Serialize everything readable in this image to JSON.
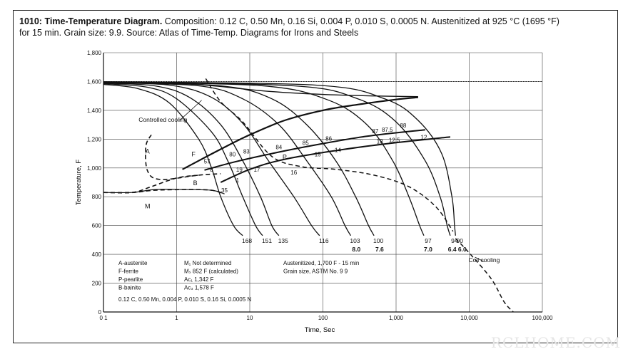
{
  "header": {
    "title": "1010: Time-Temperature Diagram.",
    "text_line1": " Composition: 0.12 C, 0.50 Mn, 0.16 Si, 0.004 P, 0.010 S, 0.0005 N. Austenitized at 925 °C (1695 °F)",
    "text_line2": "for 15 min. Grain size: 9.9. Source: Atlas of Time-Temp. Diagrams for Irons and Steels"
  },
  "watermark": "RCLHOME.COM",
  "chart_data": {
    "type": "line",
    "xscale": "log",
    "xlim": [
      0.1,
      100000
    ],
    "ylim": [
      0,
      1800
    ],
    "xlabel": "Time, Sec",
    "ylabel": "Temperature, F",
    "xticks": [
      0.1,
      1,
      10,
      100,
      1000,
      10000,
      100000
    ],
    "xtick_labels": [
      "0 1",
      "1",
      "10",
      "100",
      "1,000",
      "10,000",
      "100,000"
    ],
    "yticks": [
      0,
      200,
      400,
      600,
      800,
      1000,
      1200,
      1400,
      1600,
      1800
    ],
    "ytick_labels": [
      "0",
      "200",
      "400",
      "600",
      "800",
      "1,000",
      "1,200",
      "1,400",
      "1,600",
      "1,800"
    ],
    "grid": true,
    "cooling_curves": [
      {
        "end_label": "168",
        "points": [
          [
            0.1,
            1580
          ],
          [
            0.3,
            1550
          ],
          [
            0.8,
            1450
          ],
          [
            2,
            1200
          ],
          [
            3,
            1000
          ],
          [
            4,
            800
          ],
          [
            6,
            600
          ],
          [
            8,
            530
          ]
        ]
      },
      {
        "end_label": "151",
        "points": [
          [
            0.1,
            1585
          ],
          [
            0.4,
            1560
          ],
          [
            1,
            1480
          ],
          [
            3,
            1250
          ],
          [
            5,
            1050
          ],
          [
            8,
            800
          ],
          [
            12,
            600
          ],
          [
            15,
            530
          ]
        ]
      },
      {
        "end_label": "135",
        "points": [
          [
            0.1,
            1588
          ],
          [
            0.5,
            1570
          ],
          [
            1.5,
            1490
          ],
          [
            4,
            1300
          ],
          [
            8,
            1050
          ],
          [
            14,
            800
          ],
          [
            20,
            600
          ],
          [
            25,
            530
          ]
        ]
      },
      {
        "end_label": "116",
        "points": [
          [
            0.1,
            1590
          ],
          [
            0.8,
            1575
          ],
          [
            3,
            1490
          ],
          [
            8,
            1310
          ],
          [
            18,
            1050
          ],
          [
            40,
            800
          ],
          [
            70,
            600
          ],
          [
            90,
            530
          ]
        ]
      },
      {
        "end_label": "103",
        "points": [
          [
            0.1,
            1592
          ],
          [
            2,
            1570
          ],
          [
            8,
            1480
          ],
          [
            25,
            1300
          ],
          [
            60,
            1050
          ],
          [
            130,
            800
          ],
          [
            200,
            600
          ],
          [
            240,
            530
          ]
        ]
      },
      {
        "end_label": "100",
        "points": [
          [
            0.1,
            1594
          ],
          [
            4,
            1570
          ],
          [
            20,
            1480
          ],
          [
            60,
            1300
          ],
          [
            150,
            1050
          ],
          [
            280,
            800
          ],
          [
            420,
            600
          ],
          [
            500,
            530
          ]
        ]
      },
      {
        "end_label": "97",
        "points": [
          [
            0.1,
            1596
          ],
          [
            15,
            1570
          ],
          [
            120,
            1470
          ],
          [
            400,
            1300
          ],
          [
            900,
            1050
          ],
          [
            1500,
            800
          ],
          [
            2100,
            600
          ],
          [
            2400,
            530
          ]
        ]
      },
      {
        "end_label": "94",
        "points": [
          [
            0.1,
            1598
          ],
          [
            40,
            1570
          ],
          [
            300,
            1480
          ],
          [
            1000,
            1320
          ],
          [
            2500,
            1050
          ],
          [
            4000,
            800
          ],
          [
            5000,
            600
          ],
          [
            5500,
            530
          ]
        ]
      },
      {
        "end_label": "90",
        "points": [
          [
            0.1,
            1598
          ],
          [
            80,
            1575
          ],
          [
            700,
            1480
          ],
          [
            2000,
            1330
          ],
          [
            4200,
            1100
          ],
          [
            5800,
            800
          ],
          [
            6300,
            600
          ],
          [
            6500,
            530
          ]
        ]
      }
    ],
    "cooling_rate_labels": [
      {
        "label": "8.0",
        "x": 250
      },
      {
        "label": "7.6",
        "x": 520
      },
      {
        "label": "7.0",
        "x": 2400
      },
      {
        "label": "6.4 6.0",
        "x": 6000
      }
    ],
    "hardness_labels": [
      {
        "label": "57",
        "x": 2.6,
        "y": 1030
      },
      {
        "label": "80",
        "x": 5.8,
        "y": 1080
      },
      {
        "label": "83",
        "x": 9,
        "y": 1100
      },
      {
        "label": "84",
        "x": 25,
        "y": 1130
      },
      {
        "label": "85",
        "x": 58,
        "y": 1160
      },
      {
        "label": "86",
        "x": 120,
        "y": 1190
      },
      {
        "label": "87",
        "x": 520,
        "y": 1240
      },
      {
        "label": "87.5",
        "x": 760,
        "y": 1250
      },
      {
        "label": "88",
        "x": 1250,
        "y": 1280
      },
      {
        "label": "8",
        "x": 3,
        "y": 975
      },
      {
        "label": "19",
        "x": 7.2,
        "y": 975
      },
      {
        "label": "17",
        "x": 12.5,
        "y": 975
      },
      {
        "label": "16",
        "x": 40,
        "y": 955
      },
      {
        "label": "15",
        "x": 85,
        "y": 1080
      },
      {
        "label": "14",
        "x": 160,
        "y": 1110
      },
      {
        "label": "13",
        "x": 600,
        "y": 1170
      },
      {
        "label": "12.5",
        "x": 950,
        "y": 1180
      },
      {
        "label": "12",
        "x": 2400,
        "y": 1200
      },
      {
        "label": "1",
        "x": 6.8,
        "y": 900
      },
      {
        "label": "35",
        "x": 4.5,
        "y": 830
      }
    ],
    "region_labels": [
      {
        "label": "A",
        "x": 0.4,
        "y": 1100
      },
      {
        "label": "F",
        "x": 1.7,
        "y": 1080
      },
      {
        "label": "P",
        "x": 30,
        "y": 1060
      },
      {
        "label": "B",
        "x": 1.8,
        "y": 880
      },
      {
        "label": "M",
        "x": 0.4,
        "y": 720
      }
    ],
    "annotations": [
      "Controlled cooling",
      "Coil cooling"
    ],
    "legend": {
      "col1": [
        "A-austenite",
        "F-ferrite",
        "P-pearlite",
        "B-bainite"
      ],
      "col2": [
        "M₁   Not determined",
        "Mₛ   852 F (calculated)",
        "Ac₁  1,342 F",
        "Ac₃  1,578 F"
      ],
      "col3": [
        "Austenitized, 1,700 F - 15 min",
        "Grain size, ASTM No. 9 9"
      ],
      "composition": "0.12 C, 0.50 Mn, 0.004 P, 0.010 S, 0.16 Si, 0.0005 N"
    },
    "colors": {
      "line": "#111111",
      "grid": "#444444",
      "background": "#ffffff"
    }
  }
}
